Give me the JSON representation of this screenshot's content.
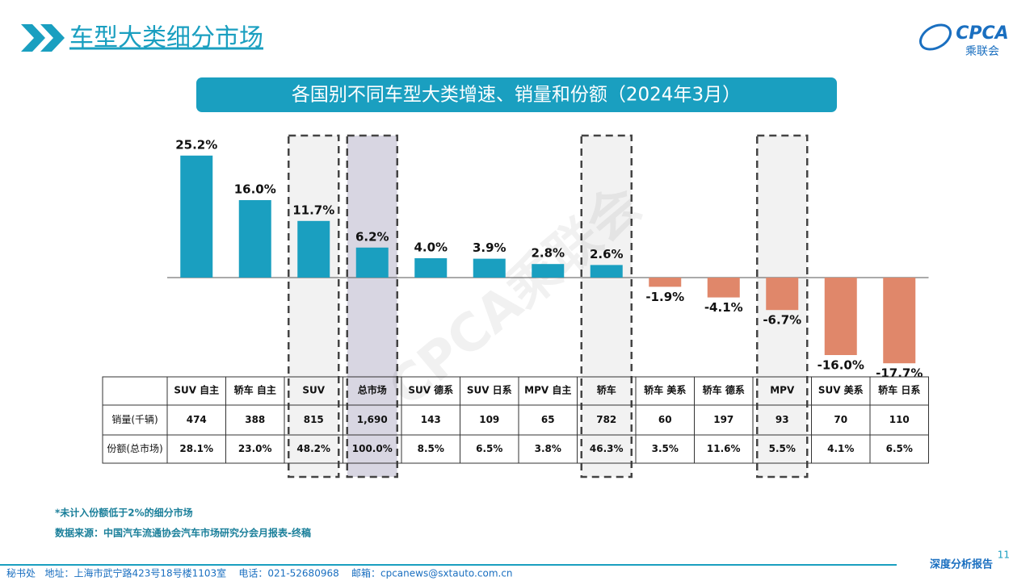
{
  "header": {
    "title": "车型大类细分市场",
    "logo": "CPCA",
    "logo_subtitle": "乘联会"
  },
  "chart_data": {
    "type": "bar",
    "title": "各国别不同车型大类增速、销量和份额（2024年3月）",
    "categories": [
      "SUV 自主",
      "轿车 自主",
      "SUV",
      "总市场",
      "SUV 德系",
      "SUV 日系",
      "MPV 自主",
      "轿车",
      "轿车 美系",
      "轿车 德系",
      "MPV",
      "SUV 美系",
      "轿车 日系"
    ],
    "values": [
      25.2,
      16.0,
      11.7,
      6.2,
      4.0,
      3.9,
      2.8,
      2.6,
      -1.9,
      -4.1,
      -6.7,
      -16.0,
      -17.7
    ],
    "value_labels": [
      "25.2%",
      "16.0%",
      "11.7%",
      "6.2%",
      "4.0%",
      "3.9%",
      "2.8%",
      "2.6%",
      "-1.9%",
      "-4.1%",
      "-6.7%",
      "-16.0%",
      "-17.7%"
    ],
    "colors": [
      "#1a9fc0",
      "#1a9fc0",
      "#1a9fc0",
      "#1a9fc0",
      "#1a9fc0",
      "#1a9fc0",
      "#1a9fc0",
      "#1a9fc0",
      "#e0876a",
      "#e0876a",
      "#e0876a",
      "#e0876a",
      "#e0876a"
    ]
  },
  "table": {
    "rows": [
      {
        "label": "销量(千辆)",
        "cells": [
          "474",
          "388",
          "815",
          "1,690",
          "143",
          "109",
          "65",
          "782",
          "60",
          "197",
          "93",
          "70",
          "110"
        ]
      },
      {
        "label": "份额(总市场)",
        "cells": [
          "28.1%",
          "23.0%",
          "48.2%",
          "100.0%",
          "8.5%",
          "6.5%",
          "3.8%",
          "46.3%",
          "3.5%",
          "11.6%",
          "5.5%",
          "4.1%",
          "6.5%"
        ]
      }
    ]
  },
  "watermark": "CPCA乘联会",
  "notes": [
    "*未计入份额低于2%的细分市场",
    "数据来源：中国汽车流通协会汽车市场研究分会月报表-终稿"
  ],
  "footer": {
    "address": "秘书处   地址：上海市武宁路423号18号楼1103室    电话：021-52680968    邮箱：cpcanews@sxtauto.com.cn",
    "report": "深度分析报告",
    "page": "11"
  }
}
